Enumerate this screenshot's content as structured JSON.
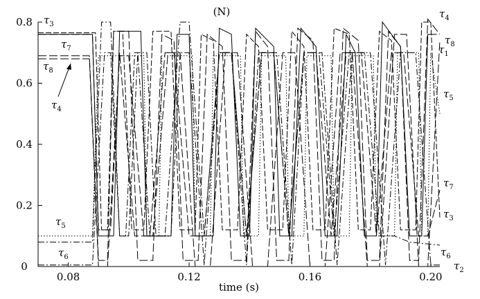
{
  "chart_data": {
    "type": "line",
    "ylabel": "(N)",
    "xlabel": "time (s)",
    "xlim": [
      0.07,
      0.203
    ],
    "ylim": [
      0,
      0.8
    ],
    "xticks": [
      0.08,
      0.12,
      0.16,
      0.2
    ],
    "xtick_labels": [
      "0.08",
      "0.12",
      "0.16",
      "0.20"
    ],
    "yticks": [
      0,
      0.2,
      0.4,
      0.6,
      0.8
    ],
    "ytick_labels": [
      "0",
      "0.2",
      "0.4",
      "0.6",
      "0.8"
    ],
    "grid": false,
    "series": [
      {
        "name": "τ1",
        "style": "solid",
        "points": [
          [
            0.07,
            0.76
          ],
          [
            0.088,
            0.76
          ],
          [
            0.09,
            0.1
          ],
          [
            0.095,
            0.1
          ],
          [
            0.097,
            0.77
          ],
          [
            0.104,
            0.77
          ],
          [
            0.106,
            0.1
          ],
          [
            0.114,
            0.1
          ],
          [
            0.116,
            0.76
          ],
          [
            0.12,
            0.76
          ],
          [
            0.122,
            0.1
          ],
          [
            0.128,
            0.1
          ],
          [
            0.13,
            0.78
          ],
          [
            0.134,
            0.76
          ],
          [
            0.137,
            0.1
          ],
          [
            0.14,
            0.1
          ],
          [
            0.142,
            0.78
          ],
          [
            0.148,
            0.72
          ],
          [
            0.15,
            0.1
          ],
          [
            0.154,
            0.1
          ],
          [
            0.157,
            0.78
          ],
          [
            0.162,
            0.72
          ],
          [
            0.165,
            0.1
          ],
          [
            0.169,
            0.1
          ],
          [
            0.172,
            0.76
          ],
          [
            0.175,
            0.7
          ],
          [
            0.178,
            0.1
          ],
          [
            0.182,
            0.1
          ],
          [
            0.184,
            0.8
          ],
          [
            0.19,
            0.72
          ],
          [
            0.193,
            0.1
          ],
          [
            0.197,
            0.1
          ],
          [
            0.199,
            0.76
          ],
          [
            0.202,
            0.76
          ]
        ]
      },
      {
        "name": "τ2",
        "style": "dashdot",
        "points": [
          [
            0.07,
            0.005
          ],
          [
            0.088,
            0.005
          ],
          [
            0.092,
            0.7
          ],
          [
            0.094,
            0.7
          ],
          [
            0.097,
            0.1
          ],
          [
            0.099,
            0.1
          ],
          [
            0.102,
            0.7
          ],
          [
            0.106,
            0.7
          ],
          [
            0.109,
            0.1
          ],
          [
            0.114,
            0.1
          ],
          [
            0.117,
            0.7
          ],
          [
            0.12,
            0.7
          ],
          [
            0.125,
            0.005
          ],
          [
            0.13,
            0.7
          ],
          [
            0.134,
            0.7
          ],
          [
            0.139,
            0.005
          ],
          [
            0.143,
            0.7
          ],
          [
            0.149,
            0.7
          ],
          [
            0.154,
            0.005
          ],
          [
            0.158,
            0.7
          ],
          [
            0.164,
            0.7
          ],
          [
            0.169,
            0.005
          ],
          [
            0.174,
            0.7
          ],
          [
            0.18,
            0.7
          ],
          [
            0.185,
            0.005
          ],
          [
            0.19,
            0.7
          ],
          [
            0.195,
            0.7
          ],
          [
            0.2,
            0.005
          ],
          [
            0.203,
            0.005
          ]
        ]
      },
      {
        "name": "τ3",
        "style": "dashed",
        "points": [
          [
            0.07,
            0.765
          ],
          [
            0.089,
            0.765
          ],
          [
            0.091,
            0.12
          ],
          [
            0.093,
            0.12
          ],
          [
            0.095,
            0.77
          ],
          [
            0.098,
            0.77
          ],
          [
            0.101,
            0.12
          ],
          [
            0.105,
            0.12
          ],
          [
            0.108,
            0.77
          ],
          [
            0.114,
            0.77
          ],
          [
            0.117,
            0.12
          ],
          [
            0.122,
            0.12
          ],
          [
            0.124,
            0.76
          ],
          [
            0.128,
            0.74
          ],
          [
            0.131,
            0.12
          ],
          [
            0.136,
            0.12
          ],
          [
            0.139,
            0.76
          ],
          [
            0.143,
            0.72
          ],
          [
            0.146,
            0.12
          ],
          [
            0.151,
            0.12
          ],
          [
            0.154,
            0.77
          ],
          [
            0.158,
            0.72
          ],
          [
            0.161,
            0.12
          ],
          [
            0.165,
            0.12
          ],
          [
            0.168,
            0.78
          ],
          [
            0.173,
            0.76
          ],
          [
            0.176,
            0.12
          ],
          [
            0.18,
            0.12
          ],
          [
            0.183,
            0.77
          ],
          [
            0.187,
            0.74
          ],
          [
            0.19,
            0.12
          ],
          [
            0.195,
            0.12
          ],
          [
            0.197,
            0.8
          ],
          [
            0.2,
            0.8
          ],
          [
            0.203,
            0.16
          ]
        ]
      },
      {
        "name": "τ4",
        "style": "longdash",
        "points": [
          [
            0.07,
            0.69
          ],
          [
            0.087,
            0.69
          ],
          [
            0.09,
            0.02
          ],
          [
            0.093,
            0.02
          ],
          [
            0.095,
            0.77
          ],
          [
            0.1,
            0.77
          ],
          [
            0.103,
            0.02
          ],
          [
            0.108,
            0.02
          ],
          [
            0.111,
            0.76
          ],
          [
            0.115,
            0.74
          ],
          [
            0.118,
            0.02
          ],
          [
            0.123,
            0.02
          ],
          [
            0.126,
            0.76
          ],
          [
            0.131,
            0.72
          ],
          [
            0.134,
            0.02
          ],
          [
            0.139,
            0.02
          ],
          [
            0.142,
            0.77
          ],
          [
            0.146,
            0.72
          ],
          [
            0.149,
            0.02
          ],
          [
            0.153,
            0.02
          ],
          [
            0.156,
            0.78
          ],
          [
            0.161,
            0.74
          ],
          [
            0.164,
            0.02
          ],
          [
            0.168,
            0.02
          ],
          [
            0.171,
            0.78
          ],
          [
            0.176,
            0.74
          ],
          [
            0.179,
            0.02
          ],
          [
            0.183,
            0.02
          ],
          [
            0.186,
            0.77
          ],
          [
            0.19,
            0.72
          ],
          [
            0.193,
            0.02
          ],
          [
            0.196,
            0.02
          ],
          [
            0.199,
            0.81
          ],
          [
            0.203,
            0.76
          ]
        ]
      },
      {
        "name": "τ5",
        "style": "dotted",
        "points": [
          [
            0.07,
            0.1
          ],
          [
            0.088,
            0.1
          ],
          [
            0.09,
            0.69
          ],
          [
            0.105,
            0.69
          ],
          [
            0.106,
            0.1
          ],
          [
            0.11,
            0.1
          ],
          [
            0.111,
            0.69
          ],
          [
            0.121,
            0.69
          ],
          [
            0.122,
            0.1
          ],
          [
            0.127,
            0.1
          ],
          [
            0.128,
            0.69
          ],
          [
            0.137,
            0.69
          ],
          [
            0.138,
            0.1
          ],
          [
            0.143,
            0.1
          ],
          [
            0.144,
            0.69
          ],
          [
            0.152,
            0.69
          ],
          [
            0.153,
            0.1
          ],
          [
            0.158,
            0.1
          ],
          [
            0.159,
            0.69
          ],
          [
            0.167,
            0.69
          ],
          [
            0.168,
            0.1
          ],
          [
            0.173,
            0.1
          ],
          [
            0.174,
            0.69
          ],
          [
            0.181,
            0.69
          ],
          [
            0.182,
            0.1
          ],
          [
            0.188,
            0.1
          ],
          [
            0.189,
            0.7
          ],
          [
            0.196,
            0.7
          ],
          [
            0.197,
            0.1
          ],
          [
            0.199,
            0.1
          ],
          [
            0.2,
            0.7
          ],
          [
            0.203,
            0.5
          ]
        ]
      },
      {
        "name": "τ6",
        "style": "dashdot",
        "points": [
          [
            0.07,
            0.08
          ],
          [
            0.088,
            0.08
          ],
          [
            0.091,
            0.8
          ],
          [
            0.094,
            0.8
          ],
          [
            0.097,
            0.1
          ],
          [
            0.1,
            0.1
          ],
          [
            0.103,
            0.7
          ],
          [
            0.107,
            0.1
          ],
          [
            0.112,
            0.1
          ],
          [
            0.117,
            0.8
          ],
          [
            0.12,
            0.8
          ],
          [
            0.125,
            0.1
          ],
          [
            0.13,
            0.7
          ],
          [
            0.134,
            0.7
          ],
          [
            0.139,
            0.1
          ],
          [
            0.144,
            0.7
          ],
          [
            0.148,
            0.7
          ],
          [
            0.153,
            0.1
          ],
          [
            0.158,
            0.7
          ],
          [
            0.163,
            0.7
          ],
          [
            0.168,
            0.1
          ],
          [
            0.173,
            0.7
          ],
          [
            0.178,
            0.7
          ],
          [
            0.183,
            0.1
          ],
          [
            0.188,
            0.1
          ],
          [
            0.193,
            0.08
          ],
          [
            0.203,
            0.07
          ]
        ]
      },
      {
        "name": "τ7",
        "style": "longdash",
        "points": [
          [
            0.07,
            0.76
          ],
          [
            0.088,
            0.76
          ],
          [
            0.09,
            0.12
          ],
          [
            0.094,
            0.12
          ],
          [
            0.097,
            0.7
          ],
          [
            0.102,
            0.1
          ],
          [
            0.107,
            0.1
          ],
          [
            0.112,
            0.7
          ],
          [
            0.115,
            0.7
          ],
          [
            0.12,
            0.1
          ],
          [
            0.125,
            0.1
          ],
          [
            0.13,
            0.7
          ],
          [
            0.134,
            0.7
          ],
          [
            0.139,
            0.1
          ],
          [
            0.144,
            0.7
          ],
          [
            0.148,
            0.7
          ],
          [
            0.153,
            0.1
          ],
          [
            0.158,
            0.7
          ],
          [
            0.162,
            0.7
          ],
          [
            0.167,
            0.1
          ],
          [
            0.172,
            0.7
          ],
          [
            0.177,
            0.7
          ],
          [
            0.182,
            0.1
          ],
          [
            0.187,
            0.7
          ],
          [
            0.191,
            0.7
          ],
          [
            0.196,
            0.1
          ],
          [
            0.199,
            0.1
          ],
          [
            0.203,
            0.25
          ]
        ]
      },
      {
        "name": "τ8",
        "style": "longdash",
        "points": [
          [
            0.07,
            0.68
          ],
          [
            0.087,
            0.68
          ],
          [
            0.09,
            0.0
          ],
          [
            0.093,
            0.0
          ],
          [
            0.097,
            0.69
          ],
          [
            0.1,
            0.69
          ],
          [
            0.105,
            0.1
          ],
          [
            0.108,
            0.1
          ],
          [
            0.113,
            0.7
          ],
          [
            0.117,
            0.7
          ],
          [
            0.122,
            0.0
          ],
          [
            0.127,
            0.0
          ],
          [
            0.132,
            0.7
          ],
          [
            0.136,
            0.7
          ],
          [
            0.141,
            0.0
          ],
          [
            0.146,
            0.0
          ],
          [
            0.151,
            0.7
          ],
          [
            0.155,
            0.7
          ],
          [
            0.16,
            0.0
          ],
          [
            0.165,
            0.0
          ],
          [
            0.17,
            0.7
          ],
          [
            0.174,
            0.7
          ],
          [
            0.179,
            0.0
          ],
          [
            0.183,
            0.0
          ],
          [
            0.188,
            0.76
          ],
          [
            0.192,
            0.76
          ],
          [
            0.196,
            0.0
          ],
          [
            0.199,
            0.0
          ],
          [
            0.203,
            0.74
          ]
        ]
      }
    ],
    "annotations": [
      {
        "name": "τ3",
        "base": "τ",
        "sub": "3",
        "where": "left-top"
      },
      {
        "name": "τ7",
        "base": "τ",
        "sub": "7",
        "where": "left-upper"
      },
      {
        "name": "τ8",
        "base": "τ",
        "sub": "8",
        "where": "left-upper-mid"
      },
      {
        "name": "τ4",
        "base": "τ",
        "sub": "4",
        "where": "left-with-arrow"
      },
      {
        "name": "τ5",
        "base": "τ",
        "sub": "5",
        "where": "left-lower"
      },
      {
        "name": "τ6",
        "base": "τ",
        "sub": "6",
        "where": "left-bottom"
      },
      {
        "name": "τ4",
        "base": "τ",
        "sub": "4",
        "where": "right-top"
      },
      {
        "name": "τ8",
        "base": "τ",
        "sub": "8",
        "where": "right-upper-1"
      },
      {
        "name": "τ1",
        "base": "τ",
        "sub": "1",
        "where": "right-upper-2"
      },
      {
        "name": "τ5",
        "base": "τ",
        "sub": "5",
        "where": "right-mid"
      },
      {
        "name": "τ7",
        "base": "τ",
        "sub": "7",
        "where": "right-lower-1"
      },
      {
        "name": "τ3",
        "base": "τ",
        "sub": "3",
        "where": "right-lower-2"
      },
      {
        "name": "τ6",
        "base": "τ",
        "sub": "6",
        "where": "right-bottom-1"
      },
      {
        "name": "τ2",
        "base": "τ",
        "sub": "2",
        "where": "right-bottom-2"
      }
    ]
  }
}
